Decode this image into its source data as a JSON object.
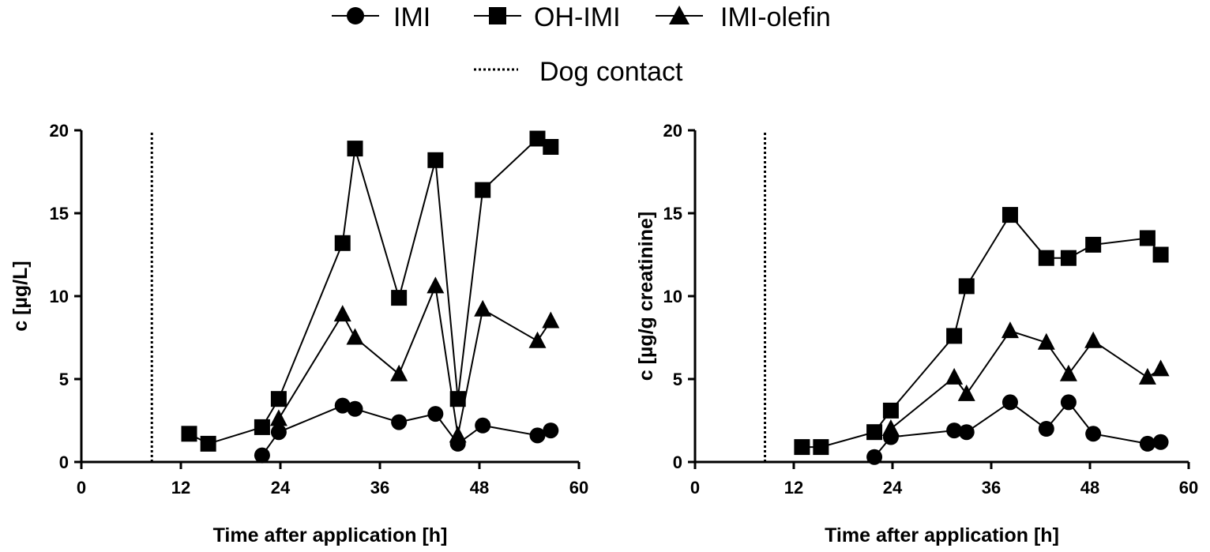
{
  "legend": {
    "items": [
      {
        "label": "IMI",
        "marker": "circle"
      },
      {
        "label": "OH-IMI",
        "marker": "square"
      },
      {
        "label": "IMI-olefin",
        "marker": "triangle"
      }
    ],
    "reference": {
      "label": "Dog contact",
      "style": "dotted"
    }
  },
  "chart_data": [
    {
      "type": "line",
      "xlabel": "Time after application [h]",
      "ylabel": "c [µg/L]",
      "xlim": [
        0,
        60
      ],
      "ylim": [
        0,
        20
      ],
      "xticks": [
        0,
        12,
        24,
        36,
        48,
        60
      ],
      "yticks": [
        0,
        5,
        10,
        15,
        20
      ],
      "vline": {
        "x": 8.5,
        "label": "Dog contact"
      },
      "grid": false,
      "series": [
        {
          "name": "IMI",
          "marker": "circle",
          "points": [
            [
              21.8,
              0.4
            ],
            [
              23.8,
              1.8
            ],
            [
              31.5,
              3.4
            ],
            [
              33.0,
              3.2
            ],
            [
              38.3,
              2.4
            ],
            [
              42.7,
              2.9
            ],
            [
              45.4,
              1.1
            ],
            [
              48.4,
              2.2
            ],
            [
              55.0,
              1.6
            ],
            [
              56.6,
              1.9
            ]
          ]
        },
        {
          "name": "OH-IMI",
          "marker": "square",
          "points": [
            [
              13.0,
              1.7
            ],
            [
              15.3,
              1.1
            ],
            [
              21.8,
              2.1
            ],
            [
              23.8,
              3.8
            ],
            [
              31.5,
              13.2
            ],
            [
              33.0,
              18.9
            ],
            [
              38.3,
              9.9
            ],
            [
              42.7,
              18.2
            ],
            [
              45.4,
              3.8
            ],
            [
              48.4,
              16.4
            ],
            [
              55.0,
              19.5
            ],
            [
              56.6,
              19.0
            ]
          ]
        },
        {
          "name": "IMI-olefin",
          "marker": "triangle",
          "points": [
            [
              23.8,
              2.6
            ],
            [
              31.5,
              8.9
            ],
            [
              33.0,
              7.5
            ],
            [
              38.3,
              5.3
            ],
            [
              42.7,
              10.6
            ],
            [
              45.4,
              1.6
            ],
            [
              48.4,
              9.2
            ],
            [
              55.0,
              7.3
            ],
            [
              56.6,
              8.5
            ]
          ]
        }
      ]
    },
    {
      "type": "line",
      "xlabel": "Time after application [h]",
      "ylabel": "c [µg/g  creatinine]",
      "xlim": [
        0,
        60
      ],
      "ylim": [
        0,
        20
      ],
      "xticks": [
        0,
        12,
        24,
        36,
        48,
        60
      ],
      "yticks": [
        0,
        5,
        10,
        15,
        20
      ],
      "vline": {
        "x": 8.5,
        "label": "Dog contact"
      },
      "grid": false,
      "series": [
        {
          "name": "IMI",
          "marker": "circle",
          "points": [
            [
              21.8,
              0.3
            ],
            [
              23.8,
              1.5
            ],
            [
              31.5,
              1.9
            ],
            [
              33.0,
              1.8
            ],
            [
              38.3,
              3.6
            ],
            [
              42.7,
              2.0
            ],
            [
              45.4,
              3.6
            ],
            [
              48.4,
              1.7
            ],
            [
              55.0,
              1.1
            ],
            [
              56.6,
              1.2
            ]
          ]
        },
        {
          "name": "OH-IMI",
          "marker": "square",
          "points": [
            [
              13.0,
              0.9
            ],
            [
              15.3,
              0.9
            ],
            [
              21.8,
              1.8
            ],
            [
              23.8,
              3.1
            ],
            [
              31.5,
              7.6
            ],
            [
              33.0,
              10.6
            ],
            [
              38.3,
              14.9
            ],
            [
              42.7,
              12.3
            ],
            [
              45.4,
              12.3
            ],
            [
              48.4,
              13.1
            ],
            [
              55.0,
              13.5
            ],
            [
              56.6,
              12.5
            ]
          ]
        },
        {
          "name": "IMI-olefin",
          "marker": "triangle",
          "points": [
            [
              23.8,
              2.0
            ],
            [
              31.5,
              5.1
            ],
            [
              33.0,
              4.1
            ],
            [
              38.3,
              7.9
            ],
            [
              42.7,
              7.2
            ],
            [
              45.4,
              5.3
            ],
            [
              48.4,
              7.3
            ],
            [
              55.0,
              5.1
            ],
            [
              56.6,
              5.6
            ]
          ]
        }
      ]
    }
  ]
}
